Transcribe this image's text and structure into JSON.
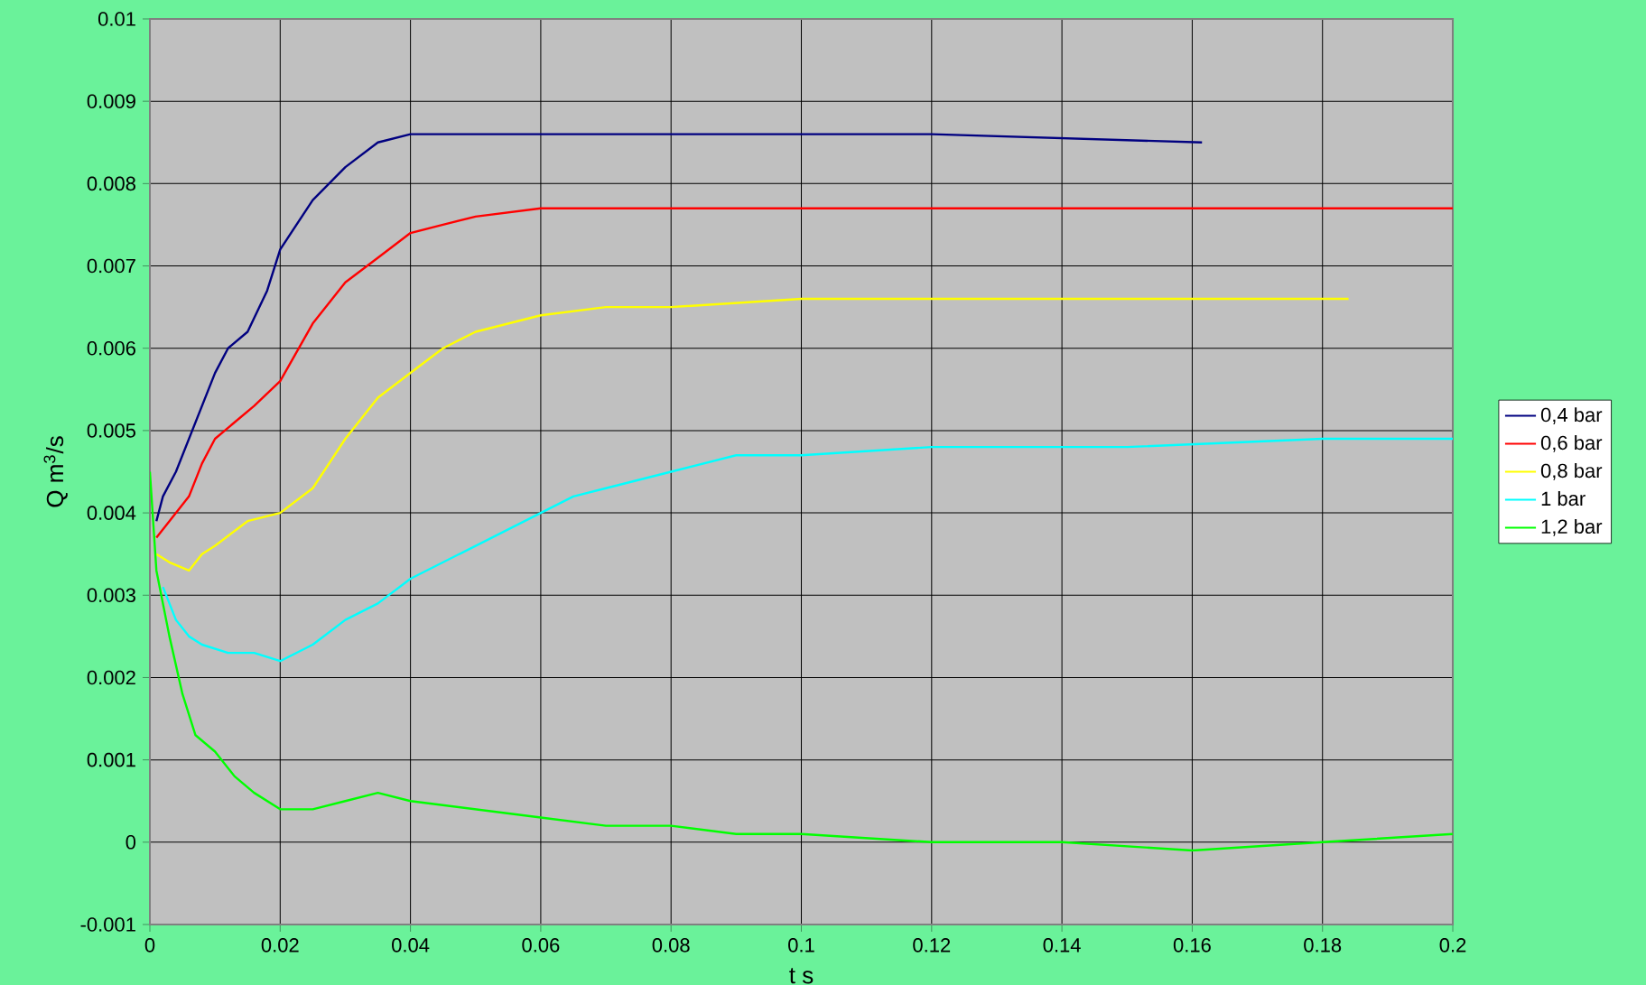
{
  "chart_data": {
    "type": "line",
    "xlabel": "t  s",
    "ylabel": "Q m$^{3}$/s",
    "xlim": [
      0,
      0.2
    ],
    "ylim": [
      -0.001,
      0.01
    ],
    "xticks": [
      0,
      0.02,
      0.04,
      0.06,
      0.08,
      0.1,
      0.12,
      0.14,
      0.16,
      0.18,
      0.2
    ],
    "yticks": [
      -0.001,
      0,
      0.001,
      0.002,
      0.003,
      0.004,
      0.005,
      0.006,
      0.007,
      0.008,
      0.009,
      0.01
    ],
    "grid": true,
    "legend": "right",
    "marker": "none",
    "line_style": "solid",
    "series": [
      {
        "name": "0,4 bar",
        "color": "#000080",
        "x": [
          0.001,
          0.002,
          0.004,
          0.006,
          0.008,
          0.01,
          0.012,
          0.015,
          0.018,
          0.02,
          0.025,
          0.03,
          0.035,
          0.04,
          0.05,
          0.08,
          0.12,
          0.1615
        ],
        "values": [
          0.0039,
          0.0042,
          0.0045,
          0.0049,
          0.0053,
          0.0057,
          0.006,
          0.0062,
          0.0067,
          0.0072,
          0.0078,
          0.0082,
          0.0085,
          0.0086,
          0.0086,
          0.0086,
          0.0086,
          0.0085
        ]
      },
      {
        "name": "0,6 bar",
        "color": "#ff0000",
        "x": [
          0.001,
          0.003,
          0.006,
          0.008,
          0.01,
          0.013,
          0.016,
          0.02,
          0.025,
          0.03,
          0.035,
          0.04,
          0.045,
          0.05,
          0.06,
          0.1,
          0.15,
          0.2
        ],
        "values": [
          0.0037,
          0.0039,
          0.0042,
          0.0046,
          0.0049,
          0.0051,
          0.0053,
          0.0056,
          0.0063,
          0.0068,
          0.0071,
          0.0074,
          0.0075,
          0.0076,
          0.0077,
          0.0077,
          0.0077,
          0.0077
        ]
      },
      {
        "name": "0,8 bar",
        "color": "#ffff00",
        "x": [
          0.001,
          0.003,
          0.006,
          0.008,
          0.01,
          0.015,
          0.02,
          0.025,
          0.03,
          0.035,
          0.04,
          0.045,
          0.05,
          0.06,
          0.07,
          0.08,
          0.1,
          0.14,
          0.184
        ],
        "values": [
          0.0035,
          0.0034,
          0.0033,
          0.0035,
          0.0036,
          0.0039,
          0.004,
          0.0043,
          0.0049,
          0.0054,
          0.0057,
          0.006,
          0.0062,
          0.0064,
          0.0065,
          0.0065,
          0.0066,
          0.0066,
          0.0066
        ]
      },
      {
        "name": "1 bar",
        "color": "#00ffff",
        "x": [
          0.002,
          0.004,
          0.006,
          0.008,
          0.012,
          0.016,
          0.02,
          0.025,
          0.03,
          0.035,
          0.04,
          0.05,
          0.06,
          0.065,
          0.07,
          0.08,
          0.09,
          0.1,
          0.12,
          0.15,
          0.18,
          0.2
        ],
        "values": [
          0.0031,
          0.0027,
          0.0025,
          0.0024,
          0.0023,
          0.0023,
          0.0022,
          0.0024,
          0.0027,
          0.0029,
          0.0032,
          0.0036,
          0.004,
          0.0042,
          0.0043,
          0.0045,
          0.0047,
          0.0047,
          0.0048,
          0.0048,
          0.0049,
          0.0049
        ]
      },
      {
        "name": "1,2 bar",
        "color": "#00ff00",
        "x": [
          0,
          0.001,
          0.003,
          0.005,
          0.007,
          0.01,
          0.013,
          0.016,
          0.02,
          0.025,
          0.03,
          0.035,
          0.04,
          0.05,
          0.06,
          0.07,
          0.08,
          0.09,
          0.1,
          0.12,
          0.14,
          0.16,
          0.18,
          0.2
        ],
        "values": [
          0.0045,
          0.0033,
          0.0025,
          0.0018,
          0.0013,
          0.0011,
          0.0008,
          0.0006,
          0.0004,
          0.0004,
          0.0005,
          0.0006,
          0.0005,
          0.0004,
          0.0003,
          0.0002,
          0.0002,
          0.0001,
          0.0001,
          0,
          0,
          -0.0001,
          0,
          0.0001
        ]
      }
    ]
  }
}
